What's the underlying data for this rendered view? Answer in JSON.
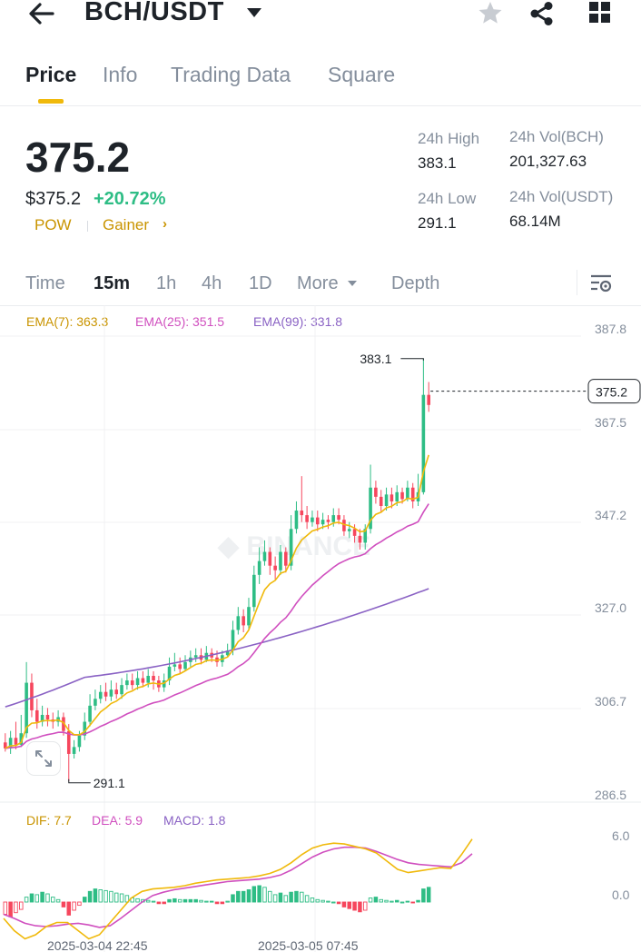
{
  "header": {
    "pair": "BCH/USDT",
    "icons": [
      "back-arrow-icon",
      "star-icon",
      "share-icon",
      "grid-icon"
    ]
  },
  "tabs": [
    {
      "label": "Price",
      "active": true
    },
    {
      "label": "Info",
      "active": false
    },
    {
      "label": "Trading Data",
      "active": false
    },
    {
      "label": "Square",
      "active": false
    }
  ],
  "price": {
    "last": "375.2",
    "usd": "$375.2",
    "change": "+20.72%",
    "tags": [
      "POW",
      "Gainer"
    ],
    "tag_arrow": "›"
  },
  "stats": {
    "high_label": "24h High",
    "high_value": "383.1",
    "low_label": "24h Low",
    "low_value": "291.1",
    "vol_base_label": "24h Vol(BCH)",
    "vol_base_value": "201,327.63",
    "vol_quote_label": "24h Vol(USDT)",
    "vol_quote_value": "68.14M"
  },
  "timeframes": [
    {
      "label": "Time",
      "active": false
    },
    {
      "label": "15m",
      "active": true
    },
    {
      "label": "1h",
      "active": false
    },
    {
      "label": "4h",
      "active": false
    },
    {
      "label": "1D",
      "active": false
    },
    {
      "label": "More",
      "active": false
    },
    {
      "label": "Depth",
      "active": false
    }
  ],
  "colors": {
    "up": "#2ebd85",
    "down": "#f6465d",
    "accent": "#f0b90b",
    "ema7": "#f0b90b",
    "ema25": "#d04fbf",
    "ema99": "#8a62c4"
  },
  "ema_legend": {
    "ema7": "EMA(7): 363.3",
    "ema25": "EMA(25): 351.5",
    "ema99": "EMA(99): 331.8"
  },
  "macd_legend": {
    "dif": "DIF: 7.7",
    "dea": "DEA: 5.9",
    "macd": "MACD: 1.8"
  },
  "chart_data": {
    "type": "candlestick",
    "price_ticks": [
      "387.8",
      "367.5",
      "347.2",
      "327.0",
      "306.7",
      "286.5"
    ],
    "macd_ticks": [
      "6.0",
      "0.0"
    ],
    "x_labels": [
      "2025-03-04 22:45",
      "2025-03-05 07:45"
    ],
    "high_marker": "383.1",
    "low_marker": "291.1",
    "last_price_label": "375.2",
    "ylim": [
      286.5,
      387.8
    ],
    "candles": [
      [
        299.5,
        298.2,
        301.5,
        297.5
      ],
      [
        298.2,
        300.5,
        302.0,
        297.0
      ],
      [
        300.5,
        299.0,
        304.0,
        298.0
      ],
      [
        299.0,
        301.5,
        305.5,
        298.5
      ],
      [
        301.5,
        312.5,
        317.0,
        300.5
      ],
      [
        312.5,
        306.5,
        314.5,
        305.0
      ],
      [
        306.5,
        304.0,
        309.0,
        302.5
      ],
      [
        304.0,
        305.5,
        307.5,
        303.0
      ],
      [
        305.5,
        304.5,
        307.0,
        303.0
      ],
      [
        304.5,
        304.0,
        306.0,
        302.5
      ],
      [
        304.0,
        305.0,
        306.5,
        303.0
      ],
      [
        305.0,
        302.0,
        306.0,
        301.0
      ],
      [
        302.0,
        297.0,
        303.5,
        291.1
      ],
      [
        297.0,
        298.5,
        300.0,
        296.0
      ],
      [
        298.5,
        301.0,
        302.0,
        297.5
      ],
      [
        301.0,
        304.0,
        306.0,
        300.0
      ],
      [
        304.0,
        307.5,
        310.0,
        303.0
      ],
      [
        307.5,
        309.0,
        311.0,
        306.5
      ],
      [
        309.0,
        310.5,
        312.0,
        308.0
      ],
      [
        310.5,
        309.5,
        312.5,
        308.5
      ],
      [
        309.5,
        311.0,
        313.0,
        308.5
      ],
      [
        311.0,
        310.0,
        312.5,
        309.0
      ],
      [
        310.0,
        312.0,
        313.5,
        309.0
      ],
      [
        312.0,
        313.0,
        314.5,
        311.0
      ],
      [
        313.0,
        312.0,
        314.5,
        311.0
      ],
      [
        312.0,
        313.5,
        315.0,
        311.0
      ],
      [
        313.5,
        312.5,
        315.0,
        311.5
      ],
      [
        312.5,
        314.0,
        315.5,
        311.5
      ],
      [
        314.0,
        313.0,
        315.0,
        311.0
      ],
      [
        313.0,
        311.5,
        314.0,
        310.5
      ],
      [
        311.5,
        313.0,
        314.5,
        310.5
      ],
      [
        313.0,
        316.0,
        318.0,
        312.0
      ],
      [
        316.0,
        316.5,
        319.0,
        315.0
      ],
      [
        316.5,
        315.5,
        318.0,
        314.5
      ],
      [
        315.5,
        317.0,
        318.5,
        315.0
      ],
      [
        317.0,
        318.0,
        319.5,
        316.0
      ],
      [
        318.0,
        318.5,
        320.0,
        317.0
      ],
      [
        318.5,
        317.5,
        320.0,
        316.5
      ],
      [
        317.5,
        319.0,
        320.5,
        317.0
      ],
      [
        319.0,
        318.0,
        320.0,
        317.0
      ],
      [
        318.0,
        317.0,
        319.5,
        316.0
      ],
      [
        317.0,
        318.5,
        319.5,
        316.0
      ],
      [
        318.5,
        319.5,
        321.0,
        318.0
      ],
      [
        319.5,
        324.0,
        326.0,
        318.5
      ],
      [
        324.0,
        327.0,
        329.0,
        323.0
      ],
      [
        327.0,
        325.0,
        328.5,
        323.5
      ],
      [
        325.0,
        329.0,
        331.0,
        324.0
      ],
      [
        329.0,
        336.0,
        338.0,
        328.0
      ],
      [
        336.0,
        339.0,
        342.0,
        334.0
      ],
      [
        339.0,
        341.0,
        343.5,
        338.0
      ],
      [
        341.0,
        338.0,
        342.0,
        336.0
      ],
      [
        338.0,
        337.0,
        340.0,
        335.0
      ],
      [
        337.0,
        341.0,
        342.5,
        336.0
      ],
      [
        341.0,
        338.0,
        342.0,
        336.5
      ],
      [
        338.0,
        346.0,
        349.0,
        337.0
      ],
      [
        346.0,
        350.0,
        352.0,
        345.0
      ],
      [
        350.0,
        349.0,
        357.5,
        347.5
      ],
      [
        349.0,
        347.5,
        351.0,
        346.0
      ],
      [
        347.5,
        348.5,
        350.0,
        346.5
      ],
      [
        348.5,
        347.0,
        350.0,
        345.5
      ],
      [
        347.0,
        348.0,
        349.5,
        346.0
      ],
      [
        348.0,
        347.5,
        349.0,
        346.0
      ],
      [
        347.5,
        349.0,
        350.5,
        346.5
      ],
      [
        349.0,
        348.0,
        350.5,
        347.0
      ],
      [
        348.0,
        345.5,
        349.0,
        344.5
      ],
      [
        345.5,
        346.0,
        347.5,
        344.0
      ],
      [
        346.0,
        344.5,
        347.0,
        343.0
      ],
      [
        344.5,
        343.0,
        346.0,
        341.5
      ],
      [
        343.0,
        346.0,
        347.0,
        341.5
      ],
      [
        346.0,
        355.0,
        360.0,
        345.0
      ],
      [
        355.0,
        353.0,
        356.5,
        351.5
      ],
      [
        353.0,
        351.0,
        354.5,
        349.5
      ],
      [
        351.0,
        353.5,
        355.0,
        350.0
      ],
      [
        353.5,
        352.0,
        355.0,
        350.5
      ],
      [
        352.0,
        354.0,
        355.5,
        351.0
      ],
      [
        354.0,
        352.5,
        355.0,
        351.5
      ],
      [
        352.5,
        355.0,
        356.5,
        352.0
      ],
      [
        355.0,
        352.0,
        356.0,
        350.5
      ],
      [
        352.0,
        354.0,
        358.0,
        351.0
      ],
      [
        354.0,
        375.2,
        383.1,
        353.5
      ],
      [
        375.2,
        373.0,
        378.0,
        371.5
      ]
    ],
    "macd_hist": [
      -1.5,
      -1.8,
      -1.3,
      -0.9,
      0.6,
      1.0,
      0.9,
      1.2,
      1.0,
      0.6,
      0.3,
      -0.6,
      -1.6,
      -1.0,
      -0.4,
      0.6,
      1.3,
      1.6,
      1.5,
      1.4,
      1.3,
      1.1,
      1.0,
      0.8,
      0.5,
      0.4,
      0.3,
      0.2,
      0.1,
      -0.2,
      -0.2,
      0.3,
      0.4,
      0.3,
      0.3,
      0.3,
      0.3,
      0.2,
      0.1,
      0.1,
      -0.2,
      -0.2,
      0.1,
      0.9,
      1.3,
      1.3,
      1.5,
      1.9,
      2.0,
      1.8,
      1.3,
      0.9,
      1.1,
      0.8,
      1.2,
      1.3,
      1.2,
      0.8,
      0.5,
      0.3,
      0.2,
      0.1,
      0.0,
      -0.2,
      -0.6,
      -0.8,
      -1.0,
      -1.2,
      -1.0,
      0.5,
      0.6,
      0.3,
      0.2,
      0.1,
      0.2,
      0.0,
      0.1,
      -0.1,
      0.2,
      1.6,
      1.8
    ],
    "dif": [
      -2.0,
      -3.5,
      -4.5,
      -4.0,
      -3.0,
      -2.5,
      -2.5,
      -3.5,
      -4.5,
      -4.0,
      -2.5,
      -1.0,
      0.5,
      1.3,
      1.6,
      1.7,
      1.8,
      2.0,
      2.3,
      2.5,
      2.7,
      2.8,
      2.9,
      3.0,
      3.2,
      3.5,
      4.0,
      4.8,
      5.8,
      6.6,
      7.0,
      7.2,
      7.1,
      6.8,
      6.5,
      6.0,
      5.0,
      4.0,
      3.6,
      3.8,
      4.0,
      4.2,
      4.1,
      5.8,
      7.7
    ],
    "dea": [
      -1.5,
      -2.0,
      -2.6,
      -2.9,
      -3.0,
      -2.9,
      -2.7,
      -2.6,
      -2.8,
      -3.1,
      -2.9,
      -2.0,
      -1.0,
      0.0,
      0.8,
      1.2,
      1.5,
      1.7,
      1.9,
      2.1,
      2.3,
      2.5,
      2.6,
      2.7,
      2.8,
      3.0,
      3.3,
      3.9,
      4.7,
      5.5,
      6.1,
      6.5,
      6.7,
      6.7,
      6.6,
      6.2,
      5.7,
      5.2,
      4.8,
      4.6,
      4.5,
      4.4,
      4.3,
      4.8,
      5.9
    ]
  }
}
